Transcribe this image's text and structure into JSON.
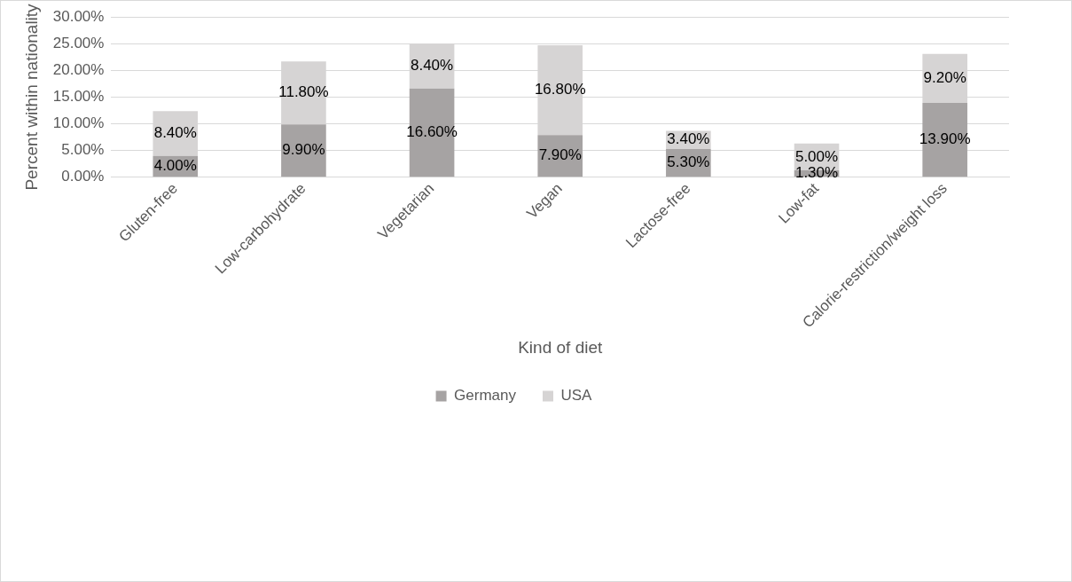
{
  "chart_data": {
    "type": "bar",
    "stacked": true,
    "xlabel": "Kind of diet",
    "ylabel": "Percent within nationality",
    "categories": [
      "Gluten-free",
      "Low-carbohydrate",
      "Vegetarian",
      "Vegan",
      "Lactose-free",
      "Low-fat",
      "Calorie-restriction/weight loss"
    ],
    "series": [
      {
        "name": "Germany",
        "color": "#a6a3a3",
        "values": [
          4.0,
          9.9,
          16.6,
          7.9,
          5.3,
          1.3,
          13.9
        ],
        "value_labels": [
          "4.00%",
          "9.90%",
          "16.60%",
          "7.90%",
          "5.30%",
          "1.30%",
          "13.90%"
        ]
      },
      {
        "name": "USA",
        "color": "#d6d4d4",
        "values": [
          8.4,
          11.8,
          8.4,
          16.8,
          3.4,
          5.0,
          9.2
        ],
        "value_labels": [
          "8.40%",
          "11.80%",
          "8.40%",
          "16.80%",
          "3.40%",
          "5.00%",
          "9.20%"
        ]
      }
    ],
    "ylim": [
      0,
      30
    ],
    "yticks": [
      {
        "value": 0,
        "label": "0.00%"
      },
      {
        "value": 5,
        "label": "5.00%"
      },
      {
        "value": 10,
        "label": "10.00%"
      },
      {
        "value": 15,
        "label": "15.00%"
      },
      {
        "value": 20,
        "label": "20.00%"
      },
      {
        "value": 25,
        "label": "25.00%"
      },
      {
        "value": 30,
        "label": "30.00%"
      }
    ],
    "grid": "y",
    "legend": "bottom"
  }
}
